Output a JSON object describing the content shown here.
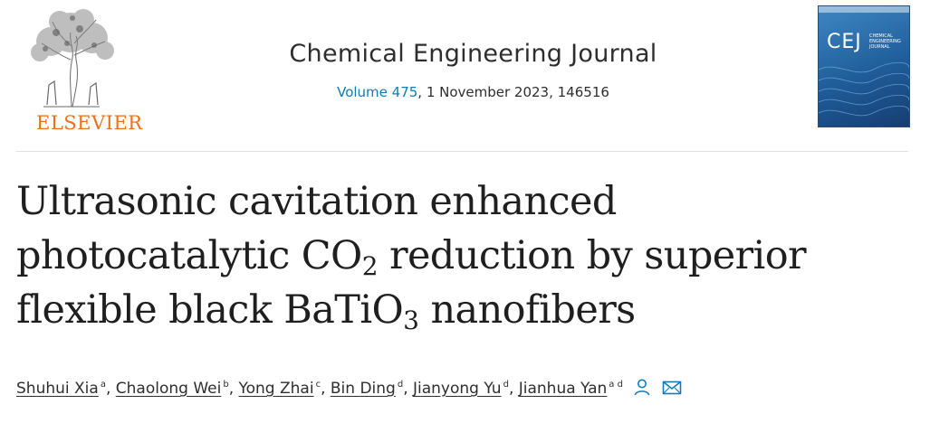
{
  "header": {
    "publisher": "ELSEVIER",
    "journal_title": "Chemical Engineering Journal",
    "volume_link": "Volume 475",
    "issue_details": ", 1 November 2023, 146516",
    "cover": {
      "abbr": "CEJ",
      "subtitle": "CHEMICAL ENGINEERING JOURNAL"
    }
  },
  "article": {
    "title_line1": "Ultrasonic cavitation enhanced",
    "title_line2_a": "photocatalytic CO",
    "title_line2_sub": "2",
    "title_line2_b": " reduction by superior",
    "title_line3_a": "flexible black BaTiO",
    "title_line3_sub": "3",
    "title_line3_b": " nanofibers"
  },
  "authors": [
    {
      "name": "Shuhui Xia",
      "aff": "a"
    },
    {
      "name": "Chaolong Wei",
      "aff": "b"
    },
    {
      "name": "Yong Zhai",
      "aff": "c"
    },
    {
      "name": "Bin Ding",
      "aff": "d"
    },
    {
      "name": "Jianyong Yu",
      "aff": "d"
    },
    {
      "name": "Jianhua Yan",
      "aff": "a d"
    }
  ],
  "icons": {
    "corresponding_author": "person-icon",
    "email": "envelope-icon"
  },
  "colors": {
    "publisher_orange": "#e9711c",
    "link_blue": "#0c7dbb"
  }
}
